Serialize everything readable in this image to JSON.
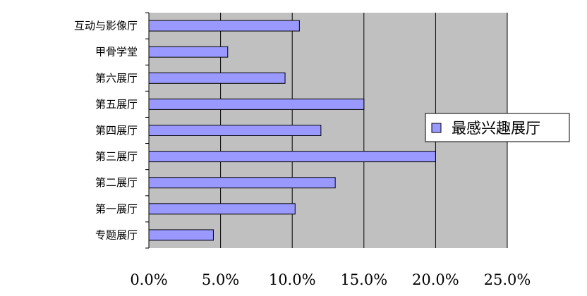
{
  "chart_data": {
    "type": "bar",
    "orientation": "horizontal",
    "categories": [
      "互动与影像厅",
      "甲骨学堂",
      "第六展厅",
      "第五展厅",
      "第四展厅",
      "第三展厅",
      "第二展厅",
      "第一展厅",
      "专题展厅"
    ],
    "series": [
      {
        "name": "最感兴趣展厅",
        "values": [
          10.5,
          5.5,
          9.5,
          15.0,
          12.0,
          20.0,
          13.0,
          10.2,
          4.5
        ]
      }
    ],
    "xlim": [
      0,
      25
    ],
    "xticks": [
      0,
      5,
      10,
      15,
      20,
      25
    ],
    "xtick_labels": [
      "0.0%",
      "5.0%",
      "10.0%",
      "15.0%",
      "20.0%",
      "25.0%"
    ],
    "title": "",
    "xlabel": "",
    "ylabel": "",
    "grid": "vertical",
    "legend_position": "right",
    "colors": {
      "plot_background": "#c0c0c0",
      "bar_fill": "#9999ff",
      "bar_stroke": "#000000",
      "grid": "#000000"
    }
  }
}
